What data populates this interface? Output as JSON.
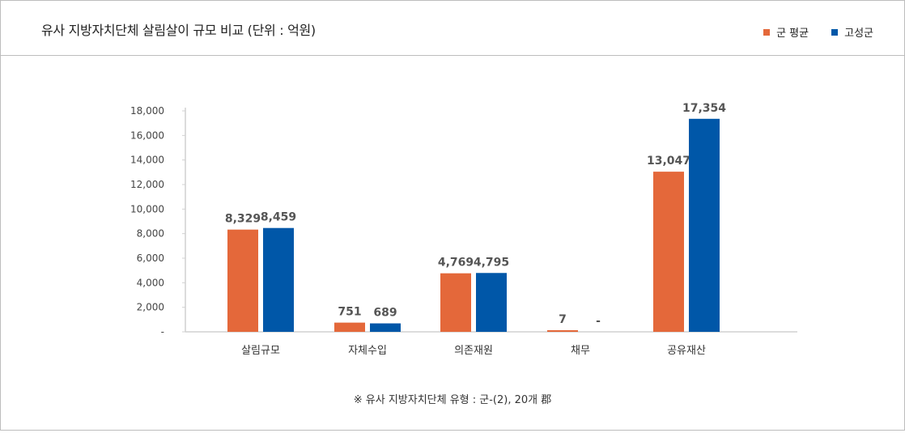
{
  "title": "유사 지방자치단체 살림살이 규모 비교 (단위 : 억원)",
  "legend": [
    {
      "label": "군 평균",
      "color": "#E4683A"
    },
    {
      "label": "고성군",
      "color": "#0057A8"
    }
  ],
  "footnote": "※ 유사 지방자치단체 유형 : 군-(2), 20개 郡",
  "chart_data": {
    "type": "bar",
    "categories": [
      "살림규모",
      "자체수입",
      "의존재원",
      "채무",
      "공유재산"
    ],
    "series": [
      {
        "name": "군 평균",
        "color": "#E4683A",
        "values": [
          8329,
          751,
          4769,
          7,
          13047
        ],
        "labels": [
          "8,329",
          "751",
          "4,769",
          "7",
          "13,047"
        ]
      },
      {
        "name": "고성군",
        "color": "#0057A8",
        "values": [
          8459,
          689,
          4795,
          0,
          17354
        ],
        "labels": [
          "8,459",
          "689",
          "4,795",
          "-",
          "17,354"
        ]
      }
    ],
    "yticks": [
      "-",
      "2,000",
      "4,000",
      "6,000",
      "8,000",
      "10,000",
      "12,000",
      "14,000",
      "16,000",
      "18,000"
    ],
    "ylim": [
      0,
      18000
    ],
    "grid": false,
    "legend_position": "top-right"
  }
}
